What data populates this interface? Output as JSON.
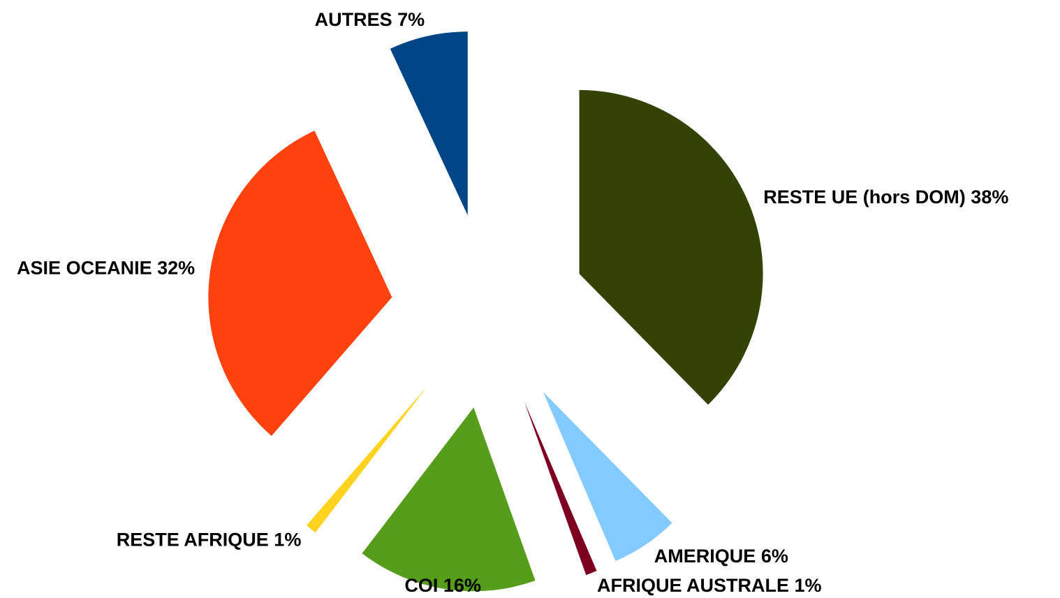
{
  "chart_data": {
    "type": "pie",
    "categories": [
      "RESTE UE (hors DOM)",
      "AMERIQUE",
      "AFRIQUE AUSTRALE",
      "COI",
      "RESTE AFRIQUE",
      "ASIE OCEANIE",
      "AUTRES"
    ],
    "values": [
      38,
      6,
      1,
      16,
      1,
      32,
      7
    ],
    "value_labels": [
      "38%",
      "6%",
      "1%",
      "16%",
      "1%",
      "32%",
      "7%"
    ],
    "colors": [
      "#334205",
      "#83caff",
      "#7e0021",
      "#579d1c",
      "#ffd320",
      "#ff420e",
      "#004586"
    ]
  }
}
